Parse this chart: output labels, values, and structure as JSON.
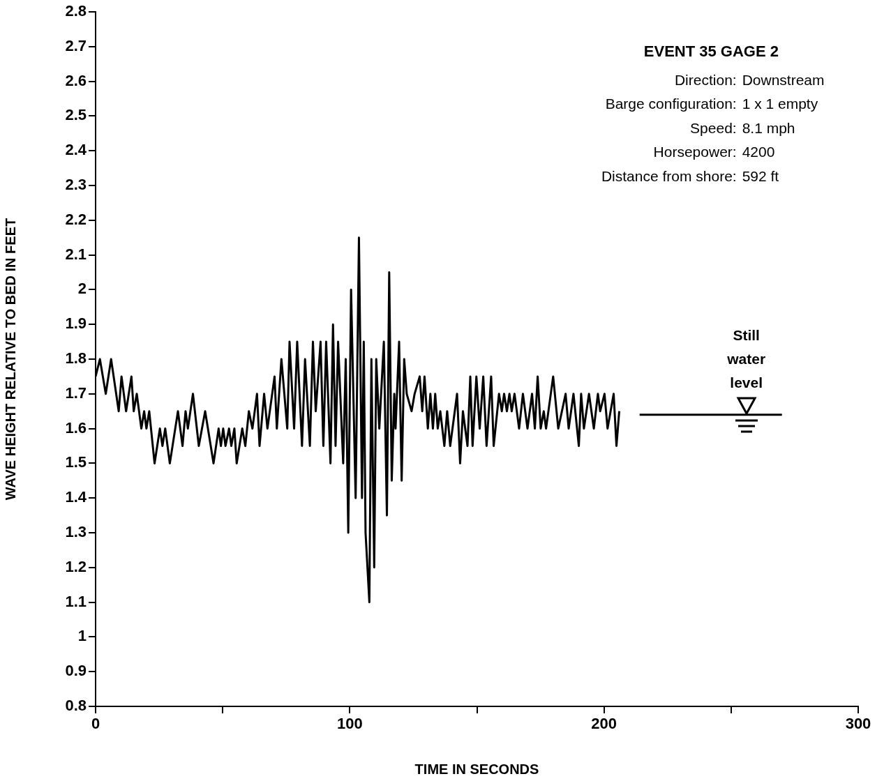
{
  "chart_data": {
    "type": "line",
    "title": "EVENT 35 GAGE 2",
    "xlabel": "TIME IN SECONDS",
    "ylabel": "WAVE HEIGHT RELATIVE TO BED IN FEET",
    "annotations": [
      "Direction: Downstream",
      "Barge configuration: 1 x 1 empty",
      "Speed: 8.1 mph",
      "Horsepower: 4200",
      "Distance from shore: 592 ft",
      {
        "text": "Still water level",
        "x": 256,
        "y": 1.64
      }
    ],
    "series": [
      {
        "color": "#000000",
        "x": [
          0,
          1.7,
          4.0,
          6.1,
          9.1,
          10.2,
          12.0,
          14.1,
          15.0,
          16.2,
          18.0,
          19.1,
          20.0,
          21.1,
          23.2,
          25.3,
          26.3,
          27.4,
          29.2,
          32.4,
          34.2,
          35.4,
          36.3,
          38.3,
          40.6,
          43.1,
          46.4,
          48.4,
          49.3,
          50.2,
          51.1,
          52.5,
          53.4,
          54.6,
          55.5,
          57.7,
          58.9,
          60.3,
          61.7,
          63.5,
          64.5,
          66.3,
          67.6,
          70.4,
          71.3,
          73.1,
          75.4,
          76.3,
          78.1,
          79.3,
          81.2,
          82.4,
          84.3,
          85.5,
          86.6,
          88.5,
          89.6,
          90.7,
          92.4,
          93.4,
          94.4,
          95.4,
          97.4,
          98.4,
          99.4,
          100.5,
          102.3,
          103.6,
          104.8,
          105.5,
          106.2,
          107.7,
          108.5,
          109.6,
          110.4,
          111.6,
          113.4,
          114.6,
          115.5,
          116.5,
          117.5,
          118.0,
          119.4,
          120.4,
          121.4,
          122.4,
          124.3,
          125.5,
          127.5,
          128.5,
          129.4,
          130.7,
          131.7,
          132.7,
          133.6,
          134.6,
          135.6,
          137.2,
          138.3,
          139.5,
          142.2,
          143.4,
          144.5,
          146.3,
          147.4,
          148.3,
          149.8,
          151.1,
          152.5,
          153.8,
          155.6,
          156.6,
          158.7,
          159.8,
          160.7,
          161.8,
          162.8,
          163.7,
          164.8,
          166.6,
          168.1,
          169.9,
          171.7,
          172.8,
          173.9,
          175.1,
          176.3,
          177.2,
          180.0,
          182.0,
          184.9,
          186.1,
          188.0,
          190.1,
          191.0,
          192.1,
          194.1,
          196.0,
          197.6,
          198.5,
          200.2,
          201.4,
          203.8,
          204.9,
          206.0
        ],
        "values": [
          1.75,
          1.8,
          1.7,
          1.8,
          1.65,
          1.75,
          1.65,
          1.75,
          1.65,
          1.7,
          1.6,
          1.65,
          1.6,
          1.65,
          1.5,
          1.6,
          1.55,
          1.6,
          1.5,
          1.65,
          1.55,
          1.65,
          1.6,
          1.7,
          1.55,
          1.65,
          1.5,
          1.6,
          1.55,
          1.6,
          1.55,
          1.6,
          1.55,
          1.6,
          1.5,
          1.6,
          1.55,
          1.65,
          1.6,
          1.7,
          1.55,
          1.7,
          1.6,
          1.75,
          1.6,
          1.8,
          1.6,
          1.85,
          1.6,
          1.85,
          1.55,
          1.8,
          1.55,
          1.85,
          1.65,
          1.85,
          1.55,
          1.85,
          1.5,
          1.9,
          1.55,
          1.85,
          1.5,
          1.8,
          1.3,
          2.0,
          1.4,
          2.15,
          1.4,
          1.85,
          1.3,
          1.1,
          1.8,
          1.2,
          1.8,
          1.6,
          1.85,
          1.35,
          2.05,
          1.45,
          1.7,
          1.6,
          1.85,
          1.45,
          1.8,
          1.7,
          1.65,
          1.7,
          1.75,
          1.65,
          1.75,
          1.6,
          1.7,
          1.6,
          1.7,
          1.6,
          1.65,
          1.55,
          1.65,
          1.55,
          1.7,
          1.5,
          1.65,
          1.55,
          1.75,
          1.55,
          1.75,
          1.6,
          1.75,
          1.55,
          1.75,
          1.55,
          1.7,
          1.65,
          1.7,
          1.65,
          1.7,
          1.65,
          1.7,
          1.6,
          1.7,
          1.6,
          1.7,
          1.6,
          1.75,
          1.6,
          1.65,
          1.6,
          1.75,
          1.6,
          1.7,
          1.6,
          1.7,
          1.55,
          1.7,
          1.6,
          1.7,
          1.6,
          1.7,
          1.65,
          1.7,
          1.6,
          1.7,
          1.55,
          1.65
        ]
      },
      {
        "color": "#000000",
        "x": [
          214,
          270
        ],
        "values": [
          1.64,
          1.64
        ]
      }
    ],
    "xlim": [
      0,
      300
    ],
    "xticks": [
      0,
      {
        "value": 50,
        "label": null
      },
      100,
      {
        "value": 150,
        "label": null
      },
      200,
      {
        "value": 250,
        "label": null
      },
      300
    ],
    "ylim": [
      0.8,
      2.8
    ],
    "yticks": [
      0.8,
      0.9,
      1,
      1.1,
      1.2,
      1.3,
      1.4,
      1.5,
      1.6,
      1.7,
      1.8,
      1.9,
      2,
      2.1,
      2.2,
      2.3,
      2.4,
      2.5,
      2.6,
      2.7,
      2.8
    ],
    "grid": false,
    "legend": false,
    "marker": "none",
    "line_style": "solid"
  }
}
